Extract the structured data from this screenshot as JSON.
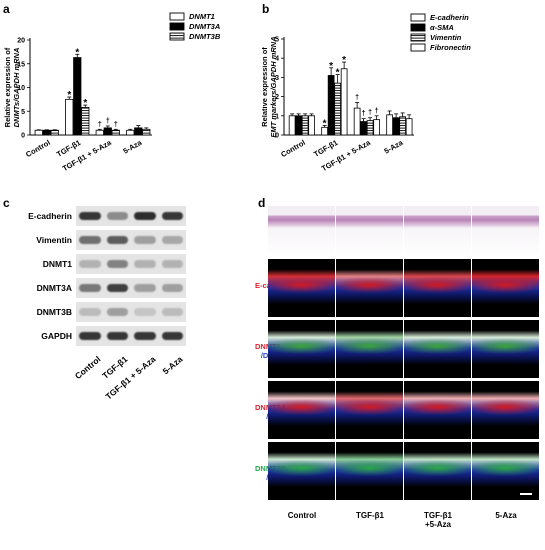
{
  "panels": {
    "a": "a",
    "b": "b",
    "c": "c",
    "d": "d"
  },
  "chart_data": [
    {
      "type": "bar",
      "panel": "a",
      "ylabel_line1": "Relative expression of",
      "ylabel_line2": "DNMTs/GAPDH mRNA",
      "ylim": [
        0,
        20
      ],
      "yticks": [
        "0",
        "5",
        "10",
        "15",
        "20"
      ],
      "categories": [
        "Control",
        "TGF-β1",
        "TGF-β1 + 5-Aza",
        "5-Aza"
      ],
      "legend_position": "top-right",
      "series": [
        {
          "name": "DNMT1",
          "values": [
            1.0,
            7.5,
            1.0,
            1.0
          ],
          "errors": [
            0.1,
            0.5,
            0.2,
            0.2
          ],
          "fill": "#ffffff"
        },
        {
          "name": "DNMT3A",
          "values": [
            1.0,
            16.3,
            1.5,
            1.5
          ],
          "errors": [
            0.1,
            0.7,
            0.4,
            0.5
          ],
          "fill": "#000000"
        },
        {
          "name": "DNMT3B",
          "values": [
            1.0,
            5.8,
            1.0,
            1.2
          ],
          "errors": [
            0.1,
            0.5,
            0.2,
            0.3
          ],
          "fill": "stripe"
        }
      ],
      "annotations": [
        {
          "series": 0,
          "category": 1,
          "text": "*"
        },
        {
          "series": 1,
          "category": 1,
          "text": "*"
        },
        {
          "series": 2,
          "category": 1,
          "text": "*"
        },
        {
          "series": 0,
          "category": 2,
          "text": "†"
        },
        {
          "series": 1,
          "category": 2,
          "text": "†"
        },
        {
          "series": 2,
          "category": 2,
          "text": "†"
        }
      ]
    },
    {
      "type": "bar",
      "panel": "b",
      "ylabel_line1": "Relative expression of",
      "ylabel_line2": "EMT markers/GAPDH mRNA",
      "ylim": [
        0,
        5
      ],
      "yticks": [
        "0",
        "1",
        "2",
        "3",
        "4",
        "5"
      ],
      "categories": [
        "Control",
        "TGF-β1",
        "TGF-β1 + 5-Aza",
        "5-Aza"
      ],
      "legend_position": "top-right",
      "series": [
        {
          "name": "E-cadherin",
          "values": [
            1.0,
            0.4,
            1.4,
            1.05
          ],
          "errors": [
            0.1,
            0.1,
            0.3,
            0.2
          ],
          "fill": "#ffffff"
        },
        {
          "name": "α-SMA",
          "values": [
            1.0,
            3.1,
            0.7,
            0.9
          ],
          "errors": [
            0.1,
            0.4,
            0.15,
            0.2
          ],
          "fill": "#000000"
        },
        {
          "name": "Vimentin",
          "values": [
            1.0,
            2.7,
            0.75,
            0.95
          ],
          "errors": [
            0.1,
            0.45,
            0.15,
            0.2
          ],
          "fill": "stripe"
        },
        {
          "name": "Fibronectin",
          "values": [
            1.0,
            3.45,
            0.8,
            0.85
          ],
          "errors": [
            0.1,
            0.35,
            0.2,
            0.2
          ],
          "fill": "#ffffff"
        }
      ],
      "annotations": [
        {
          "series": 0,
          "category": 1,
          "text": "*"
        },
        {
          "series": 1,
          "category": 1,
          "text": "*"
        },
        {
          "series": 2,
          "category": 1,
          "text": "*"
        },
        {
          "series": 3,
          "category": 1,
          "text": "*"
        },
        {
          "series": 0,
          "category": 2,
          "text": "†"
        },
        {
          "series": 1,
          "category": 2,
          "text": "†"
        },
        {
          "series": 2,
          "category": 2,
          "text": "†"
        },
        {
          "series": 3,
          "category": 2,
          "text": "†"
        }
      ]
    }
  ],
  "blot": {
    "rows": [
      "E-cadherin",
      "Vimentin",
      "DNMT1",
      "DNMT3A",
      "DNMT3B",
      "GAPDH"
    ],
    "lanes": [
      "Control",
      "TGF-β1",
      "TGF-β1 + 5-Aza",
      "5-Aza"
    ]
  },
  "micro": {
    "rows": [
      {
        "line1": "E-cadherin",
        "line2": "/DAPI",
        "color": "#e0202a"
      },
      {
        "line1": "DNMT1",
        "line2": "/DAPI",
        "color": "#e0202a"
      },
      {
        "line1": "DNMT3A",
        "line2": "/DAPI",
        "color": "#e0202a"
      },
      {
        "line1": "DNMT3B",
        "line2": "/DAPI",
        "color": "#1fa64a"
      }
    ],
    "cols": [
      {
        "line1": "Control",
        "line2": ""
      },
      {
        "line1": "TGF-β1",
        "line2": ""
      },
      {
        "line1": "TGF-β1",
        "line2": "+5-Aza"
      },
      {
        "line1": "5-Aza",
        "line2": ""
      }
    ]
  }
}
